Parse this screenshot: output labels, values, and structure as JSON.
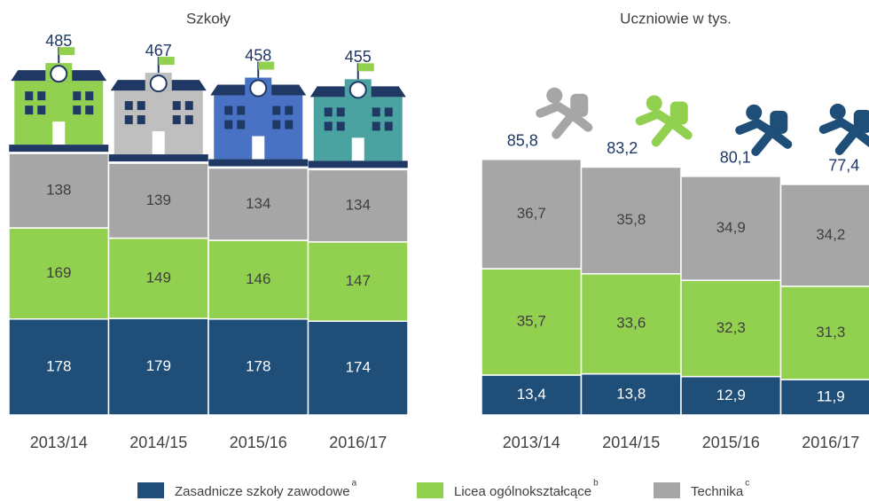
{
  "chart_data": [
    {
      "type": "stacked-bar",
      "title": "Szkoły",
      "categories": [
        "2013/14",
        "2014/15",
        "2015/16",
        "2016/17"
      ],
      "series": [
        {
          "name": "Zasadnicze szkoły zawodowe",
          "note": "a",
          "color": "#1f4e79",
          "values": [
            178,
            179,
            178,
            174
          ]
        },
        {
          "name": "Licea ogólnokształcące",
          "note": "b",
          "color": "#92d050",
          "values": [
            169,
            149,
            146,
            147
          ]
        },
        {
          "name": "Technika",
          "note": "c",
          "color": "#a6a6a6",
          "values": [
            138,
            139,
            134,
            134
          ]
        }
      ],
      "totals": [
        485,
        467,
        458,
        455
      ]
    },
    {
      "type": "stacked-bar",
      "title": "Uczniowie w tys.",
      "categories": [
        "2013/14",
        "2014/15",
        "2015/16",
        "2016/17"
      ],
      "series": [
        {
          "name": "Zasadnicze szkoły zawodowe",
          "note": "a",
          "color": "#1f4e79",
          "values": [
            13.4,
            13.8,
            12.9,
            11.9
          ],
          "value_labels": [
            "13,4",
            "13,8",
            "12,9",
            "11,9"
          ]
        },
        {
          "name": "Licea ogólnokształcące",
          "note": "b",
          "color": "#92d050",
          "values": [
            35.7,
            33.6,
            32.3,
            31.3
          ],
          "value_labels": [
            "35,7",
            "33,6",
            "32,3",
            "31,3"
          ]
        },
        {
          "name": "Technika",
          "note": "c",
          "color": "#a6a6a6",
          "values": [
            36.7,
            35.8,
            34.9,
            34.2
          ],
          "value_labels": [
            "36,7",
            "35,8",
            "34,9",
            "34,2"
          ]
        }
      ],
      "totals": [
        85.8,
        83.2,
        80.1,
        77.4
      ],
      "total_labels": [
        "85,8",
        "83,2",
        "80,1",
        "77,4"
      ]
    }
  ]
}
